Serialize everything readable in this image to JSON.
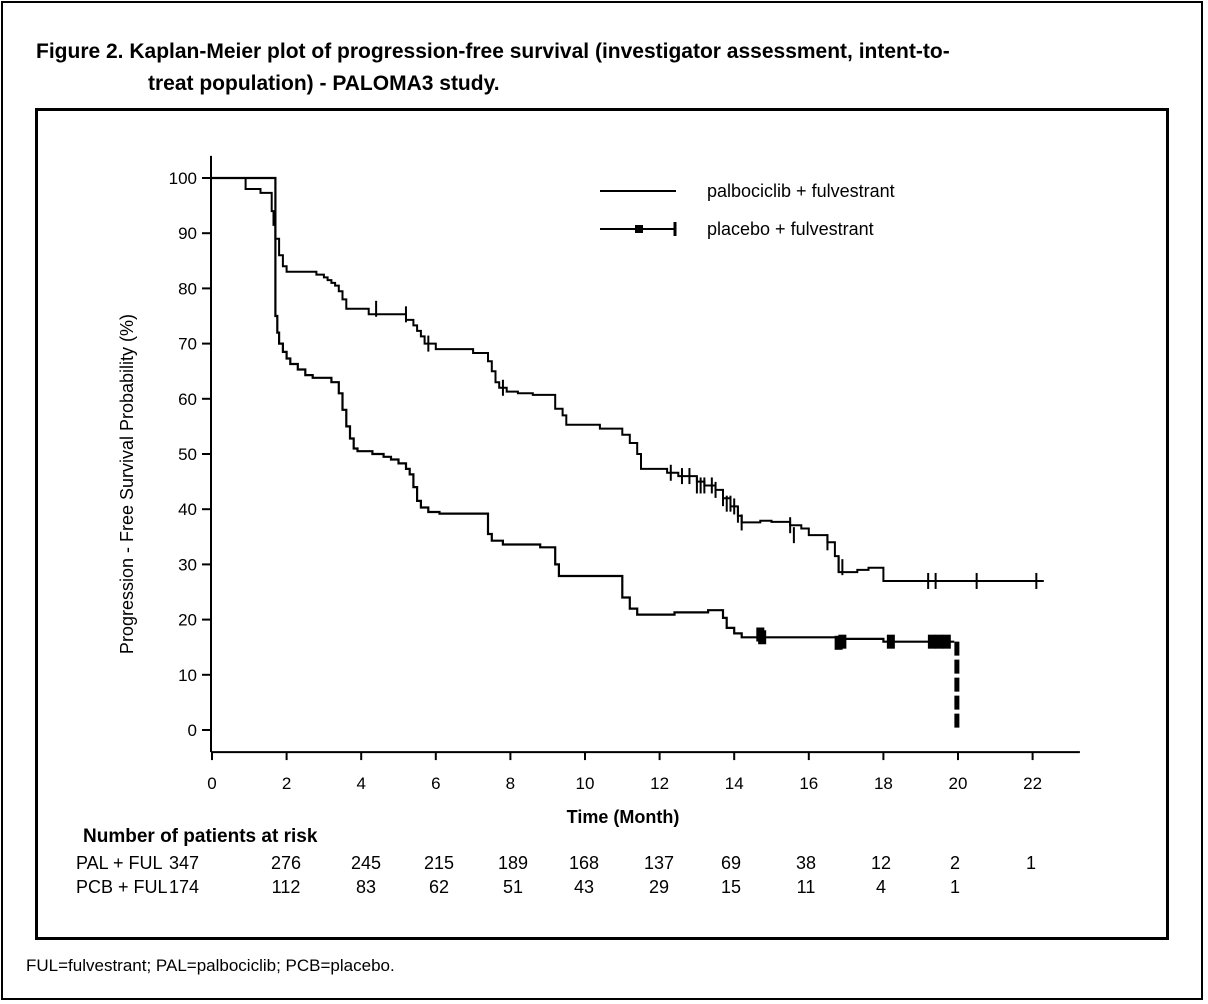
{
  "title": {
    "line1": "Figure 2. Kaplan-Meier plot of progression-free survival (investigator assessment, intent-to-",
    "line2": "treat population) - PALOMA3 study."
  },
  "footnote": "FUL=fulvestrant; PAL=palbociclib; PCB=placebo.",
  "chart_data": {
    "type": "line",
    "subtype": "kaplan-meier",
    "xlabel": "Time (Month)",
    "ylabel": "Progression - Free Survival Probability (%)",
    "xlim": [
      0,
      23
    ],
    "ylim": [
      -4,
      104
    ],
    "xticks": [
      0,
      2,
      4,
      6,
      8,
      10,
      12,
      14,
      16,
      18,
      20,
      22
    ],
    "yticks": [
      0,
      10,
      20,
      30,
      40,
      50,
      60,
      70,
      80,
      90,
      100
    ],
    "legend_position": "top-right",
    "series": [
      {
        "name": "palbociclib + fulvestrant",
        "style": "solid",
        "points": [
          [
            0,
            100
          ],
          [
            0.9,
            100
          ],
          [
            0.9,
            98
          ],
          [
            1.3,
            98
          ],
          [
            1.3,
            97.3
          ],
          [
            1.6,
            97.3
          ],
          [
            1.6,
            94
          ],
          [
            1.65,
            94
          ],
          [
            1.65,
            91.5
          ],
          [
            1.7,
            91.5
          ],
          [
            1.7,
            89
          ],
          [
            1.8,
            89
          ],
          [
            1.8,
            86
          ],
          [
            1.9,
            86
          ],
          [
            1.9,
            84
          ],
          [
            2.0,
            84
          ],
          [
            2.0,
            83
          ],
          [
            2.8,
            83
          ],
          [
            2.8,
            82.5
          ],
          [
            3.0,
            82.5
          ],
          [
            3.0,
            82
          ],
          [
            3.1,
            82
          ],
          [
            3.1,
            81.5
          ],
          [
            3.2,
            81.5
          ],
          [
            3.2,
            81
          ],
          [
            3.3,
            81
          ],
          [
            3.3,
            80.5
          ],
          [
            3.4,
            80.5
          ],
          [
            3.4,
            79.5
          ],
          [
            3.5,
            79.5
          ],
          [
            3.5,
            78
          ],
          [
            3.6,
            78
          ],
          [
            3.6,
            76.3
          ],
          [
            4.2,
            76.3
          ],
          [
            4.2,
            75.3
          ],
          [
            5.2,
            75.3
          ],
          [
            5.2,
            74.3
          ],
          [
            5.4,
            74.3
          ],
          [
            5.4,
            73.3
          ],
          [
            5.5,
            73.3
          ],
          [
            5.5,
            72.3
          ],
          [
            5.6,
            72.3
          ],
          [
            5.6,
            71.3
          ],
          [
            5.7,
            71.3
          ],
          [
            5.7,
            70
          ],
          [
            6.0,
            70
          ],
          [
            6.0,
            69
          ],
          [
            7.0,
            69
          ],
          [
            7.0,
            68.3
          ],
          [
            7.4,
            68.3
          ],
          [
            7.4,
            66.8
          ],
          [
            7.5,
            66.8
          ],
          [
            7.5,
            65
          ],
          [
            7.6,
            65
          ],
          [
            7.6,
            63
          ],
          [
            7.7,
            63
          ],
          [
            7.7,
            62
          ],
          [
            7.9,
            62
          ],
          [
            7.9,
            61.3
          ],
          [
            8.2,
            61.3
          ],
          [
            8.2,
            61
          ],
          [
            8.6,
            61
          ],
          [
            8.6,
            60.7
          ],
          [
            9.2,
            60.7
          ],
          [
            9.2,
            58.2
          ],
          [
            9.4,
            58.2
          ],
          [
            9.4,
            57
          ],
          [
            9.5,
            57
          ],
          [
            9.5,
            55.3
          ],
          [
            10.4,
            55.3
          ],
          [
            10.4,
            54.6
          ],
          [
            11.0,
            54.6
          ],
          [
            11.0,
            53.5
          ],
          [
            11.2,
            53.5
          ],
          [
            11.2,
            52
          ],
          [
            11.4,
            52
          ],
          [
            11.4,
            50
          ],
          [
            11.5,
            50
          ],
          [
            11.5,
            47.3
          ],
          [
            12.2,
            47.3
          ],
          [
            12.2,
            46.6
          ],
          [
            12.5,
            46.6
          ],
          [
            12.5,
            46
          ],
          [
            13.0,
            46
          ],
          [
            13.0,
            45
          ],
          [
            13.2,
            45
          ],
          [
            13.2,
            44.3
          ],
          [
            13.5,
            44.3
          ],
          [
            13.5,
            43.5
          ],
          [
            13.7,
            43.5
          ],
          [
            13.7,
            42
          ],
          [
            13.9,
            42
          ],
          [
            13.9,
            40.5
          ],
          [
            14.1,
            40.5
          ],
          [
            14.1,
            38.8
          ],
          [
            14.2,
            38.8
          ],
          [
            14.2,
            37.6
          ],
          [
            14.7,
            37.6
          ],
          [
            14.7,
            37.9
          ],
          [
            15.0,
            37.9
          ],
          [
            15.0,
            37.7
          ],
          [
            15.5,
            37.7
          ],
          [
            15.5,
            37.1
          ],
          [
            15.8,
            37.1
          ],
          [
            15.8,
            36.5
          ],
          [
            16.0,
            36.5
          ],
          [
            16.0,
            35.3
          ],
          [
            16.5,
            35.3
          ],
          [
            16.5,
            34
          ],
          [
            16.7,
            34
          ],
          [
            16.7,
            31.5
          ],
          [
            16.8,
            31.5
          ],
          [
            16.8,
            28.6
          ],
          [
            17.3,
            28.6
          ],
          [
            17.3,
            29
          ],
          [
            17.6,
            29
          ],
          [
            17.6,
            29.4
          ],
          [
            18.0,
            29.4
          ],
          [
            18.0,
            27
          ],
          [
            22.3,
            27
          ]
        ],
        "censor": [
          [
            4.4,
            76.3
          ],
          [
            5.2,
            75.3
          ],
          [
            5.8,
            70
          ],
          [
            7.8,
            62
          ],
          [
            12.3,
            46.6
          ],
          [
            12.6,
            46
          ],
          [
            12.8,
            46
          ],
          [
            13.0,
            44.3
          ],
          [
            13.1,
            44.3
          ],
          [
            13.2,
            44.3
          ],
          [
            13.4,
            44.3
          ],
          [
            13.5,
            43.5
          ],
          [
            13.7,
            42
          ],
          [
            13.8,
            41
          ],
          [
            13.9,
            41
          ],
          [
            14.0,
            40.5
          ],
          [
            14.1,
            39
          ],
          [
            14.2,
            37.6
          ],
          [
            15.5,
            37.1
          ],
          [
            15.6,
            35.3
          ],
          [
            16.5,
            34
          ],
          [
            16.8,
            30
          ],
          [
            16.9,
            29.5
          ],
          [
            19.2,
            27
          ],
          [
            19.4,
            27
          ],
          [
            20.5,
            27
          ],
          [
            22.1,
            27
          ]
        ]
      },
      {
        "name": "placebo + fulvestrant",
        "style": "solid-censored",
        "points": [
          [
            0,
            100
          ],
          [
            1.7,
            100
          ],
          [
            1.7,
            75
          ],
          [
            1.75,
            75
          ],
          [
            1.75,
            72
          ],
          [
            1.8,
            72
          ],
          [
            1.8,
            70
          ],
          [
            1.9,
            70
          ],
          [
            1.9,
            68.5
          ],
          [
            2.0,
            68.5
          ],
          [
            2.0,
            67.3
          ],
          [
            2.1,
            67.3
          ],
          [
            2.1,
            66.3
          ],
          [
            2.3,
            66.3
          ],
          [
            2.3,
            65.3
          ],
          [
            2.5,
            65.3
          ],
          [
            2.5,
            64.3
          ],
          [
            2.7,
            64.3
          ],
          [
            2.7,
            63.8
          ],
          [
            3.2,
            63.8
          ],
          [
            3.2,
            63
          ],
          [
            3.4,
            63
          ],
          [
            3.4,
            61
          ],
          [
            3.5,
            61
          ],
          [
            3.5,
            58
          ],
          [
            3.6,
            58
          ],
          [
            3.6,
            55
          ],
          [
            3.7,
            55
          ],
          [
            3.7,
            52.8
          ],
          [
            3.8,
            52.8
          ],
          [
            3.8,
            51
          ],
          [
            3.9,
            51
          ],
          [
            3.9,
            50.5
          ],
          [
            4.3,
            50.5
          ],
          [
            4.3,
            50
          ],
          [
            4.6,
            50
          ],
          [
            4.6,
            49.5
          ],
          [
            4.8,
            49.5
          ],
          [
            4.8,
            49
          ],
          [
            5.0,
            49
          ],
          [
            5.0,
            48.3
          ],
          [
            5.2,
            48.3
          ],
          [
            5.2,
            47.3
          ],
          [
            5.3,
            47.3
          ],
          [
            5.3,
            46.3
          ],
          [
            5.4,
            46.3
          ],
          [
            5.4,
            44
          ],
          [
            5.5,
            44
          ],
          [
            5.5,
            41.5
          ],
          [
            5.6,
            41.5
          ],
          [
            5.6,
            40.3
          ],
          [
            5.8,
            40.3
          ],
          [
            5.8,
            39.5
          ],
          [
            6.1,
            39.5
          ],
          [
            6.1,
            39.2
          ],
          [
            7.4,
            39.2
          ],
          [
            7.4,
            35.5
          ],
          [
            7.5,
            35.5
          ],
          [
            7.5,
            34.3
          ],
          [
            7.8,
            34.3
          ],
          [
            7.8,
            33.6
          ],
          [
            8.8,
            33.6
          ],
          [
            8.8,
            33.1
          ],
          [
            9.2,
            33.1
          ],
          [
            9.2,
            30
          ],
          [
            9.3,
            30
          ],
          [
            9.3,
            27.9
          ],
          [
            11.0,
            27.9
          ],
          [
            11.0,
            24
          ],
          [
            11.2,
            24
          ],
          [
            11.2,
            22
          ],
          [
            11.4,
            22
          ],
          [
            11.4,
            20.9
          ],
          [
            12.4,
            20.9
          ],
          [
            12.4,
            21.3
          ],
          [
            13.3,
            21.3
          ],
          [
            13.3,
            21.7
          ],
          [
            13.7,
            21.7
          ],
          [
            13.7,
            20.3
          ],
          [
            13.8,
            20.3
          ],
          [
            13.8,
            18.5
          ],
          [
            14.0,
            18.5
          ],
          [
            14.0,
            17.5
          ],
          [
            14.2,
            17.5
          ],
          [
            14.2,
            16.8
          ],
          [
            16.8,
            16.8
          ],
          [
            16.8,
            16.5
          ],
          [
            18.0,
            16.5
          ],
          [
            18.0,
            16
          ],
          [
            19.9,
            16
          ]
        ],
        "censor": [
          [
            14.7,
            17.3
          ],
          [
            14.75,
            16.8
          ],
          [
            16.8,
            15.8
          ],
          [
            16.9,
            16
          ],
          [
            18.2,
            16
          ],
          [
            19.3,
            16
          ],
          [
            19.5,
            16
          ],
          [
            19.7,
            16
          ]
        ],
        "final_drop": [
          [
            19.97,
            16
          ],
          [
            19.97,
            0
          ]
        ]
      }
    ],
    "risk_table": {
      "header": "Number of patients at risk",
      "times": [
        0,
        2,
        4,
        6,
        8,
        10,
        12,
        14,
        16,
        18,
        20,
        22
      ],
      "rows": [
        {
          "label": "PAL + FUL",
          "values": [
            "347",
            "276",
            "245",
            "215",
            "189",
            "168",
            "137",
            "69",
            "38",
            "12",
            "2",
            "1"
          ]
        },
        {
          "label": "PCB + FUL",
          "values": [
            "174",
            "112",
            "83",
            "62",
            "51",
            "43",
            "29",
            "15",
            "11",
            "4",
            "1",
            ""
          ]
        }
      ]
    }
  }
}
